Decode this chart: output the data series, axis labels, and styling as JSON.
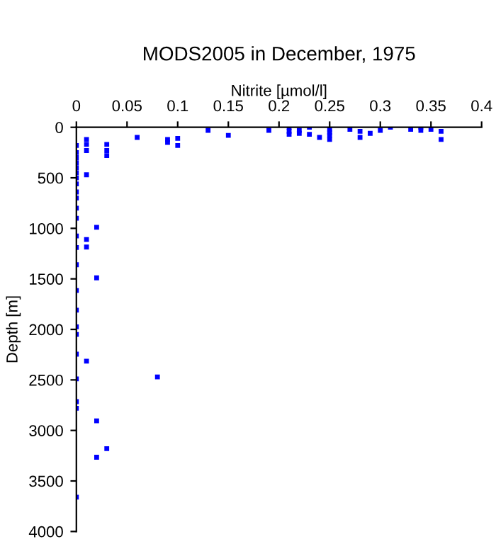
{
  "chart_data": {
    "type": "scatter",
    "title": "MODS2005 in December, 1975",
    "xlabel": "Nitrite [µmol/l]",
    "ylabel": "Depth [m]",
    "xlim": [
      0,
      0.4
    ],
    "xticks": [
      0,
      0.05,
      0.1,
      0.15,
      0.2,
      0.25,
      0.3,
      0.35,
      0.4
    ],
    "ylim": [
      4000,
      0
    ],
    "yticks": [
      0,
      500,
      1000,
      1500,
      2000,
      2500,
      3000,
      3500,
      4000
    ],
    "grid": false,
    "marker": "square",
    "legend": false,
    "series": [
      {
        "color": "#0000ff",
        "x": [
          0.06,
          0.09,
          0.09,
          0.1,
          0.1,
          0.13,
          0.15,
          0.19,
          0.21,
          0.21,
          0.21,
          0.22,
          0.22,
          0.23,
          0.23,
          0.24,
          0.25,
          0.25,
          0.25,
          0.25,
          0.27,
          0.28,
          0.28,
          0.29,
          0.3,
          0.31,
          0.33,
          0.34,
          0.34,
          0.35,
          0.36,
          0.36,
          0.01,
          0.01,
          0.01,
          0.01,
          0.03,
          0.03,
          0.03,
          0,
          0,
          0,
          0,
          0,
          0,
          0,
          0,
          0,
          0,
          0,
          0,
          0,
          0,
          0,
          0,
          0,
          0,
          0,
          0,
          0,
          0,
          0,
          0,
          0.01,
          0.01,
          0.01,
          0.02,
          0.02,
          0.08,
          0.02,
          0.02,
          0.03
        ],
        "values": [
          100,
          120,
          150,
          110,
          180,
          30,
          80,
          30,
          0,
          40,
          70,
          30,
          60,
          0,
          70,
          100,
          20,
          50,
          80,
          120,
          20,
          40,
          100,
          60,
          30,
          0,
          20,
          0,
          30,
          20,
          40,
          120,
          120,
          170,
          230,
          470,
          170,
          230,
          280,
          180,
          250,
          300,
          350,
          400,
          450,
          500,
          560,
          640,
          700,
          800,
          900,
          1075,
          1190,
          1360,
          1615,
          1810,
          1975,
          2050,
          2245,
          2490,
          2715,
          2780,
          3660,
          1110,
          1185,
          2315,
          990,
          1490,
          2470,
          2905,
          3265,
          3180
        ]
      }
    ]
  }
}
